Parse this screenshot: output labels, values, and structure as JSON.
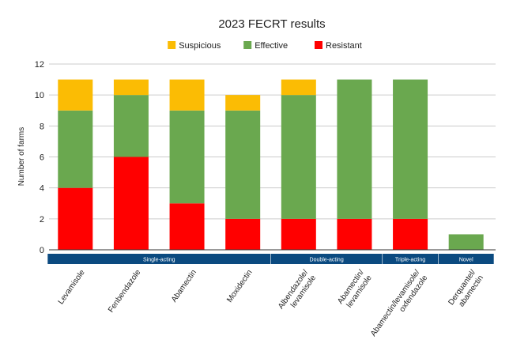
{
  "chart_data": {
    "type": "bar",
    "stacked": true,
    "title": "2023 FECRT results",
    "xlabel": "",
    "ylabel": "Number of farms",
    "ylim": [
      0,
      12
    ],
    "yticks": [
      0,
      2,
      4,
      6,
      8,
      10,
      12
    ],
    "grid": true,
    "legend_position": "top-center",
    "categories": [
      [
        "Levamisole"
      ],
      [
        "Fenbendazole"
      ],
      [
        "Abamectin"
      ],
      [
        "Moxidectin"
      ],
      [
        "Albendazole/",
        "levamisole"
      ],
      [
        "Abamectin/",
        "levamisole"
      ],
      [
        "Abamectin/levamisole/",
        "oxfendazole"
      ],
      [
        "Derquantel/",
        "abamectin"
      ]
    ],
    "series": [
      {
        "name": "Resistant",
        "color": "#ff0000",
        "values": [
          4,
          6,
          3,
          2,
          2,
          2,
          2,
          0
        ]
      },
      {
        "name": "Effective",
        "color": "#6aa84f",
        "values": [
          5,
          4,
          6,
          7,
          8,
          9,
          9,
          1
        ]
      },
      {
        "name": "Suspicious",
        "color": "#fbbc04",
        "values": [
          2,
          1,
          2,
          1,
          1,
          0,
          0,
          0
        ]
      }
    ],
    "legend_order": [
      "Suspicious",
      "Effective",
      "Resistant"
    ],
    "groups": [
      {
        "label": "Single-acting",
        "start": 0,
        "end": 3
      },
      {
        "label": "Double-acting",
        "start": 4,
        "end": 5
      },
      {
        "label": "Triple-acting",
        "start": 6,
        "end": 6
      },
      {
        "label": "Novel",
        "start": 7,
        "end": 7
      }
    ],
    "group_color": "#0b4a80"
  }
}
